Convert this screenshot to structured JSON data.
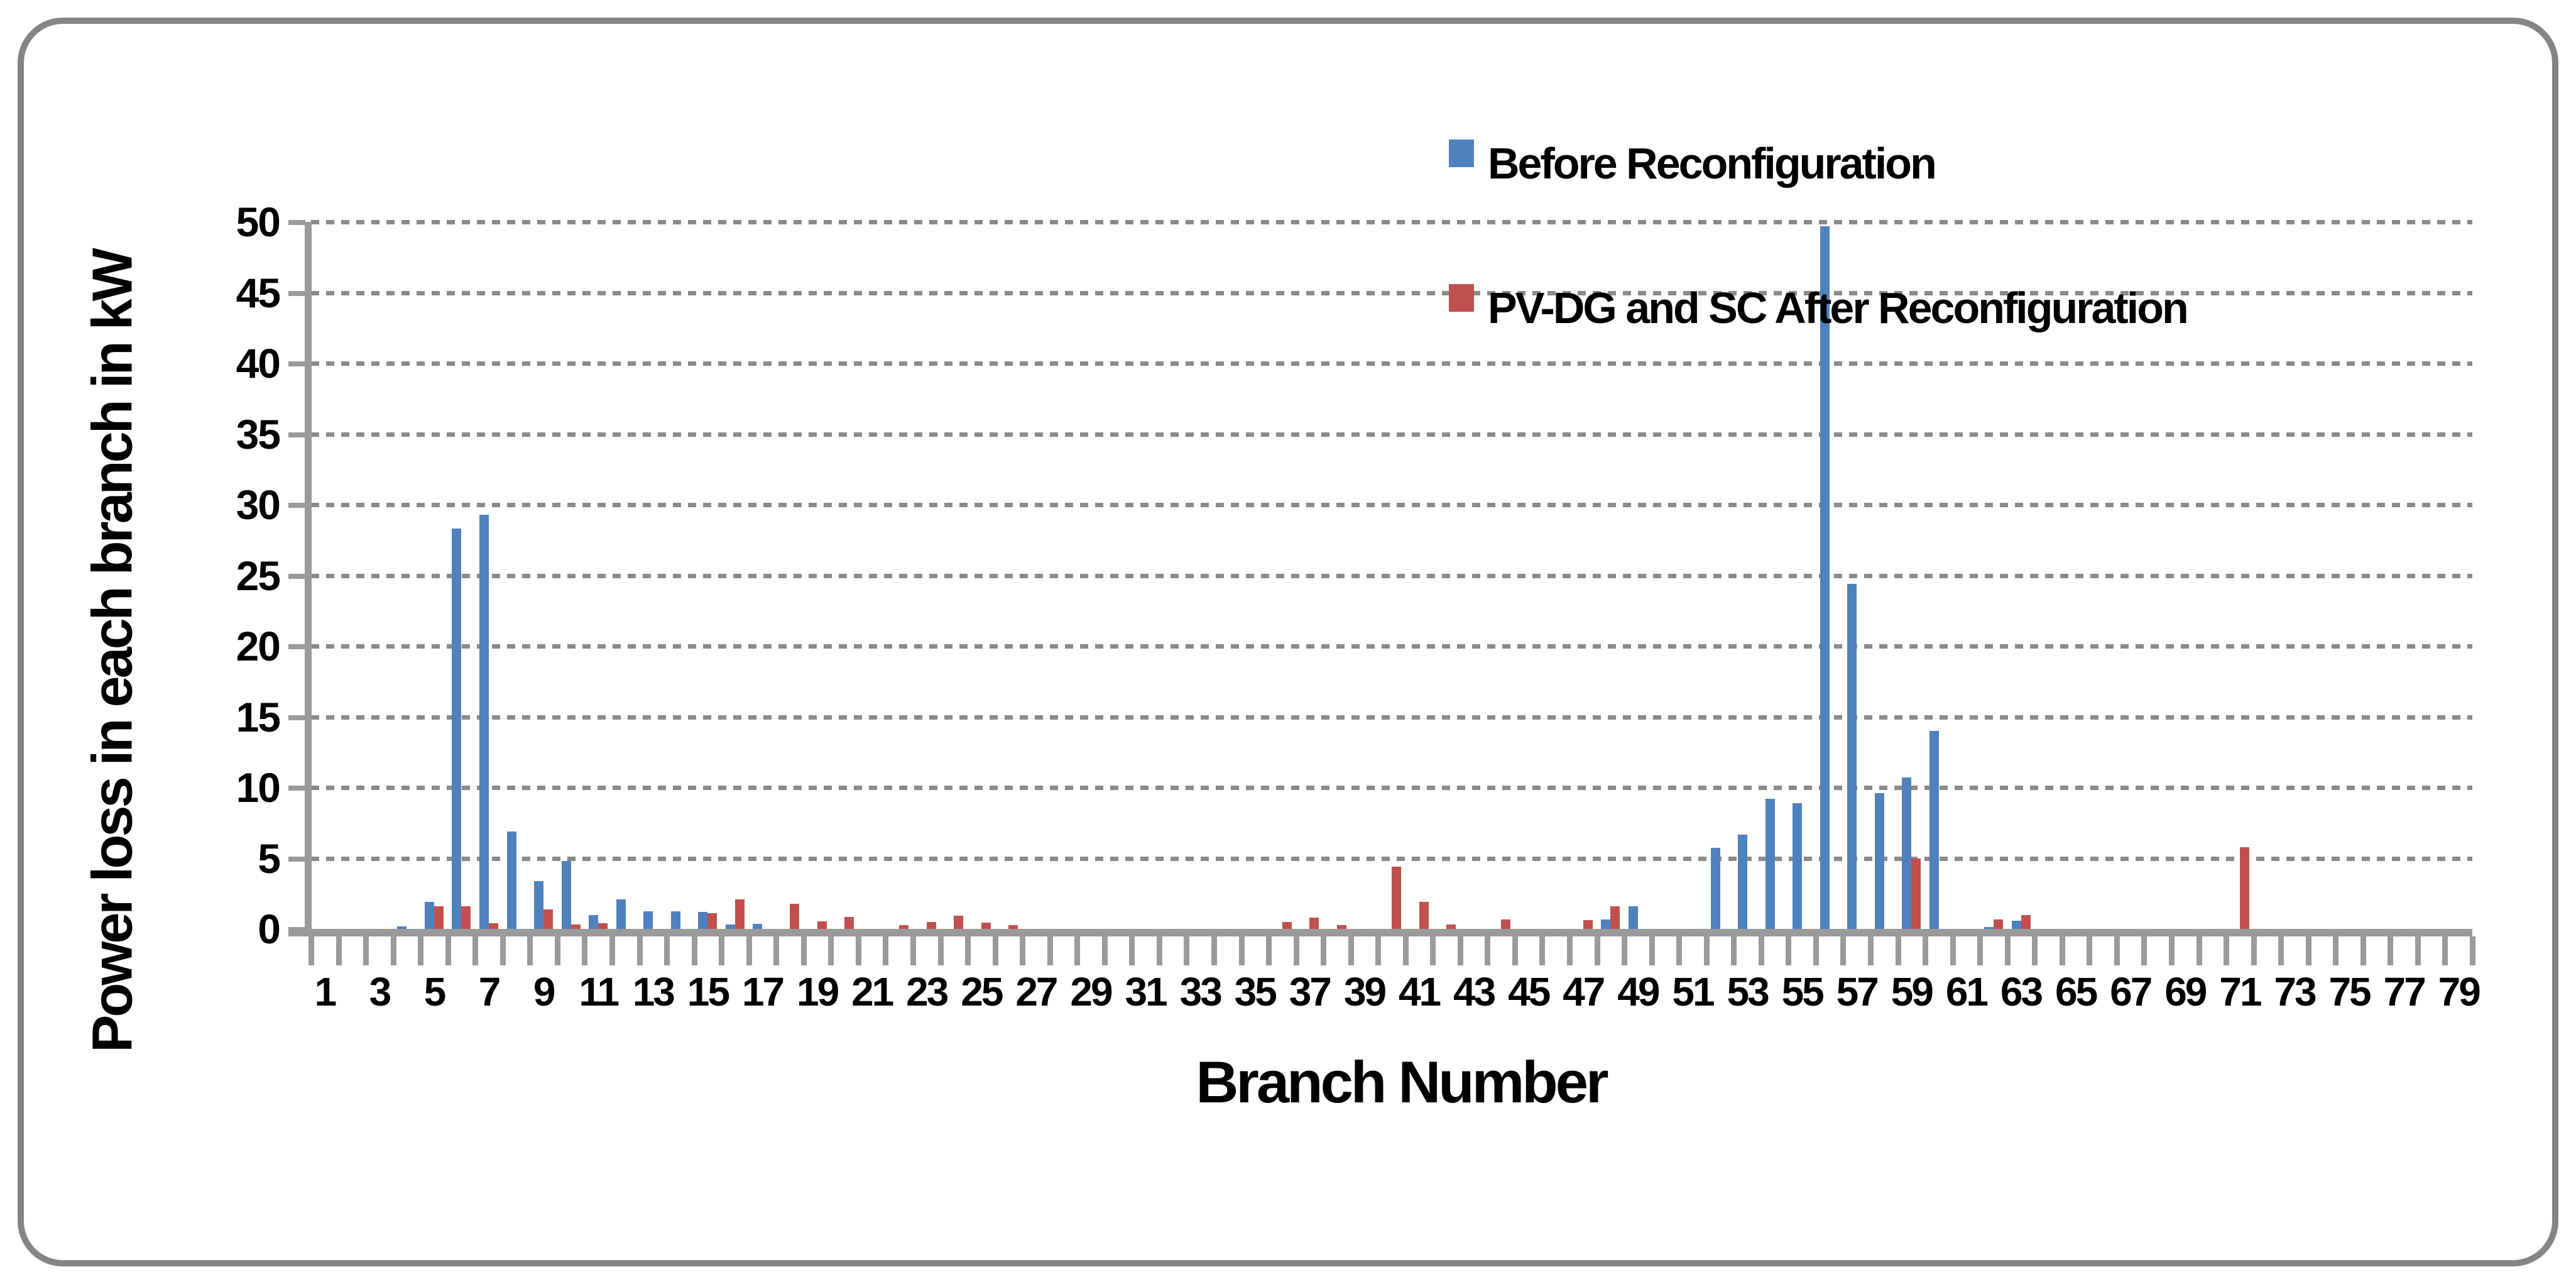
{
  "legend": [
    {
      "label": "Before Reconfiguration",
      "color": "#4f81bd"
    },
    {
      "label": "PV-DG and SC After Reconfiguration",
      "color": "#c0504d"
    }
  ],
  "x_axis": {
    "title": "Branch Number",
    "tick_labels": [
      1,
      3,
      5,
      7,
      9,
      11,
      13,
      15,
      17,
      19,
      21,
      23,
      25,
      27,
      29,
      31,
      33,
      35,
      37,
      39,
      41,
      43,
      45,
      47,
      49,
      51,
      53,
      55,
      57,
      59,
      61,
      63,
      65,
      67,
      69,
      71,
      73,
      75,
      77,
      79
    ]
  },
  "y_axis": {
    "title": "Power loss in each branch in kW",
    "tick_labels": [
      0,
      5,
      10,
      15,
      20,
      25,
      30,
      35,
      40,
      45,
      50
    ]
  },
  "chart_data": {
    "type": "bar",
    "title": "",
    "xlabel": "Branch Number",
    "ylabel": "Power loss in each branch in kW",
    "ylim": [
      0,
      50
    ],
    "ytick_step": 5,
    "grid": "dashed-horizontal",
    "legend_position": "top-right-inside",
    "categories": [
      1,
      2,
      3,
      4,
      5,
      6,
      7,
      8,
      9,
      10,
      11,
      12,
      13,
      14,
      15,
      16,
      17,
      18,
      19,
      20,
      21,
      22,
      23,
      24,
      25,
      26,
      27,
      28,
      29,
      30,
      31,
      32,
      33,
      34,
      35,
      36,
      37,
      38,
      39,
      40,
      41,
      42,
      43,
      44,
      45,
      46,
      47,
      48,
      49,
      50,
      51,
      52,
      53,
      54,
      55,
      56,
      57,
      58,
      59,
      60,
      61,
      62,
      63,
      64,
      65,
      66,
      67,
      68,
      69,
      70,
      71,
      72,
      73,
      74,
      75,
      76,
      77,
      78,
      79
    ],
    "series": [
      {
        "name": "Before Reconfiguration",
        "color": "#4f81bd",
        "values": [
          0,
          0,
          0,
          0.2,
          1.9,
          28.3,
          29.3,
          6.9,
          3.4,
          4.8,
          1.0,
          2.1,
          1.25,
          1.25,
          1.2,
          0.3,
          0.35,
          0,
          0,
          0,
          0,
          0,
          0,
          0,
          0,
          0,
          0,
          0,
          0,
          0,
          0,
          0,
          0,
          0,
          0,
          0,
          0,
          0,
          0,
          0,
          0,
          0,
          0,
          0,
          0,
          0,
          0,
          0.66,
          1.6,
          0,
          0,
          5.75,
          6.65,
          9.2,
          8.9,
          49.7,
          24.4,
          9.6,
          10.7,
          14,
          0,
          0.12,
          0.6,
          0,
          0,
          0,
          0,
          0,
          0,
          0,
          0,
          0,
          0,
          0,
          0,
          0,
          0,
          0,
          0
        ]
      },
      {
        "name": "PV-DG and SC After Reconfiguration",
        "color": "#c0504d",
        "values": [
          0,
          0,
          0,
          0,
          1.6,
          1.6,
          0.4,
          0,
          1.4,
          0.3,
          0.4,
          0,
          0,
          0,
          1.1,
          2.1,
          0,
          1.8,
          0.55,
          0.85,
          0,
          0.26,
          0.5,
          0.95,
          0.45,
          0.25,
          0,
          0,
          0,
          0,
          0,
          0,
          0,
          0,
          0,
          0.5,
          0.8,
          0.27,
          0,
          4.4,
          1.9,
          0.3,
          0,
          0.65,
          0,
          0,
          0.63,
          1.6,
          0,
          0,
          0,
          0,
          0,
          0,
          0,
          0,
          0,
          0,
          5.0,
          0,
          0,
          0.65,
          1.0,
          0,
          0,
          0,
          0,
          0,
          0,
          0,
          5.8,
          0,
          0,
          0,
          0,
          0,
          0,
          0,
          0
        ]
      }
    ]
  }
}
